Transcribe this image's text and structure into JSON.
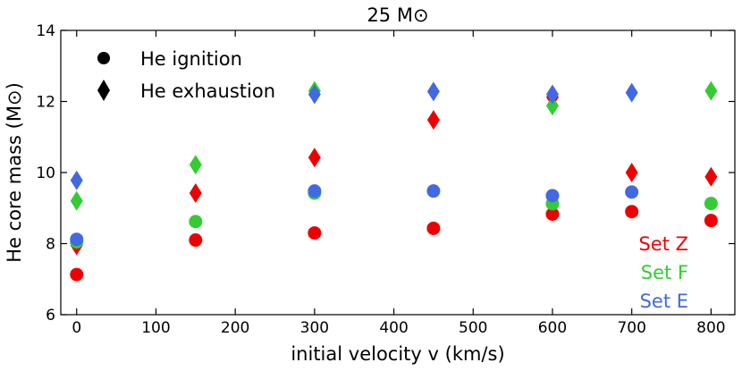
{
  "chart_data": {
    "type": "scatter",
    "title": "25 M⊙",
    "xlabel": "initial velocity v (km/s)",
    "ylabel": "He core mass (M⊙)",
    "xlim": [
      -20,
      830
    ],
    "ylim": [
      6,
      14
    ],
    "xticks": [
      0,
      100,
      200,
      300,
      400,
      500,
      600,
      700,
      800
    ],
    "yticks": [
      6,
      8,
      10,
      12,
      14
    ],
    "legend": {
      "position": "top-left",
      "entries": [
        {
          "marker": "circle",
          "label": "He ignition"
        },
        {
          "marker": "diamond",
          "label": "He exhaustion"
        }
      ]
    },
    "series": [
      {
        "name": "Set Z",
        "color": "#ee0000",
        "ignition": {
          "x": [
            0,
            150,
            300,
            450,
            600,
            700,
            800
          ],
          "y": [
            7.13,
            8.1,
            8.3,
            8.43,
            8.83,
            8.9,
            8.65
          ]
        },
        "exhaustion": {
          "x": [
            0,
            150,
            300,
            450,
            600,
            700,
            800
          ],
          "y": [
            7.95,
            9.42,
            10.42,
            11.48,
            12.12,
            10.0,
            9.88
          ]
        }
      },
      {
        "name": "Set F",
        "color": "#33cc33",
        "ignition": {
          "x": [
            0,
            150,
            300,
            600,
            800
          ],
          "y": [
            8.05,
            8.62,
            9.42,
            9.12,
            9.13
          ]
        },
        "exhaustion": {
          "x": [
            0,
            150,
            300,
            600,
            800
          ],
          "y": [
            9.2,
            10.22,
            12.3,
            11.88,
            12.3
          ]
        }
      },
      {
        "name": "Set E",
        "color": "#4169e1",
        "ignition": {
          "x": [
            0,
            300,
            450,
            600,
            700
          ],
          "y": [
            8.12,
            9.48,
            9.48,
            9.35,
            9.45
          ]
        },
        "exhaustion": {
          "x": [
            0,
            300,
            450,
            600,
            700
          ],
          "y": [
            9.78,
            12.2,
            12.28,
            12.2,
            12.25
          ]
        }
      }
    ]
  }
}
